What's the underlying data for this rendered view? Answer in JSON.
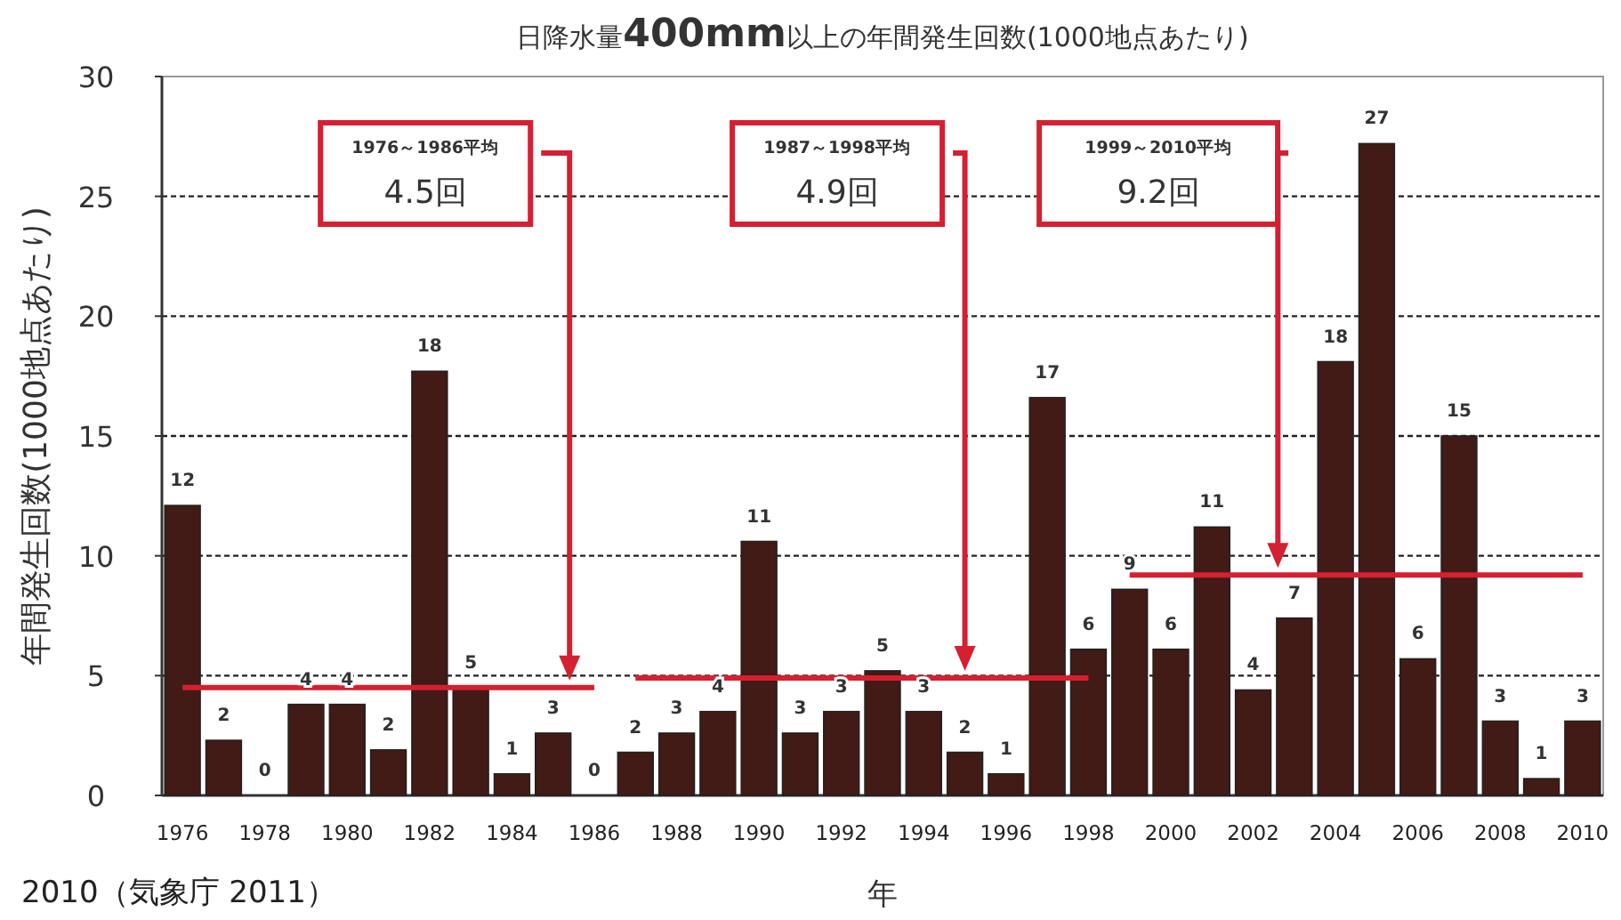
{
  "chart_data": {
    "type": "bar",
    "title": "日降水量**400mm**以上の年間発生回数(1000地点あたり)",
    "xlabel": "年",
    "ylabel": "年間発生回数(1000地点あたり)",
    "categories": [
      "1976",
      null,
      "1978",
      null,
      "1980",
      null,
      "1982",
      null,
      "1984",
      null,
      "1986",
      null,
      "1988",
      null,
      "1990",
      null,
      "1992",
      null,
      "1994",
      null,
      "1996",
      null,
      "1998",
      null,
      "2000",
      null,
      "2002",
      null,
      "2004",
      null,
      "2006",
      null,
      "2008",
      null,
      "2010"
    ],
    "series": [
      {
        "color": "#421a16",
        "values": [
          12.1,
          2.3,
          0,
          3.8,
          3.8,
          1.9,
          17.7,
          4.5,
          0.9,
          2.6,
          0,
          1.8,
          2.6,
          3.5,
          10.6,
          2.6,
          3.5,
          5.2,
          3.5,
          1.8,
          0.9,
          16.6,
          6.1,
          8.6,
          6.1,
          11.2,
          4.4,
          7.4,
          18.1,
          27.2,
          5.7,
          15.0,
          3.1,
          0.7,
          3.1
        ],
        "value_labels": [
          "12",
          "2",
          "0",
          "4",
          "4",
          "2",
          "18",
          "5",
          "1",
          "3",
          "0",
          "2",
          "3",
          "4",
          "11",
          "3",
          "3",
          "5",
          "3",
          "2",
          "1",
          "17",
          "6",
          "9",
          "6",
          "11",
          "4",
          "7",
          "18",
          "27",
          "6",
          "15",
          "3",
          "1",
          "3"
        ]
      },
      {
        "type": "line",
        "color": "#d42030",
        "values": [
          4.5,
          4.5,
          4.5,
          4.5,
          4.5,
          4.5,
          4.5,
          4.5,
          4.5,
          4.5,
          4.5,
          null,
          null,
          null,
          null,
          null,
          null,
          null,
          null,
          null,
          null,
          null,
          null,
          null,
          null,
          null,
          null,
          null,
          null,
          null,
          null,
          null,
          null,
          null,
          null
        ]
      },
      {
        "type": "line",
        "color": "#d42030",
        "values": [
          null,
          null,
          null,
          null,
          null,
          null,
          null,
          null,
          null,
          null,
          null,
          4.9,
          4.9,
          4.9,
          4.9,
          4.9,
          4.9,
          4.9,
          4.9,
          4.9,
          4.9,
          4.9,
          4.9,
          null,
          null,
          null,
          null,
          null,
          null,
          null,
          null,
          null,
          null,
          null,
          null
        ]
      },
      {
        "type": "line",
        "color": "#d42030",
        "values": [
          null,
          null,
          null,
          null,
          null,
          null,
          null,
          null,
          null,
          null,
          null,
          null,
          null,
          null,
          null,
          null,
          null,
          null,
          null,
          null,
          null,
          null,
          null,
          9.2,
          9.2,
          9.2,
          9.2,
          9.2,
          9.2,
          9.2,
          9.2,
          9.2,
          9.2,
          9.2,
          9.2
        ]
      }
    ],
    "ylim": [
      0,
      30
    ],
    "yticks": [
      0,
      5,
      10,
      15,
      20,
      25,
      30
    ],
    "grid": "y",
    "annotations": [
      "1976～1986平均",
      "4.5回",
      "1987～1998平均",
      "4.9回",
      "1999～2010平均",
      "9.2回",
      "2010（気象庁 2011）"
    ]
  }
}
